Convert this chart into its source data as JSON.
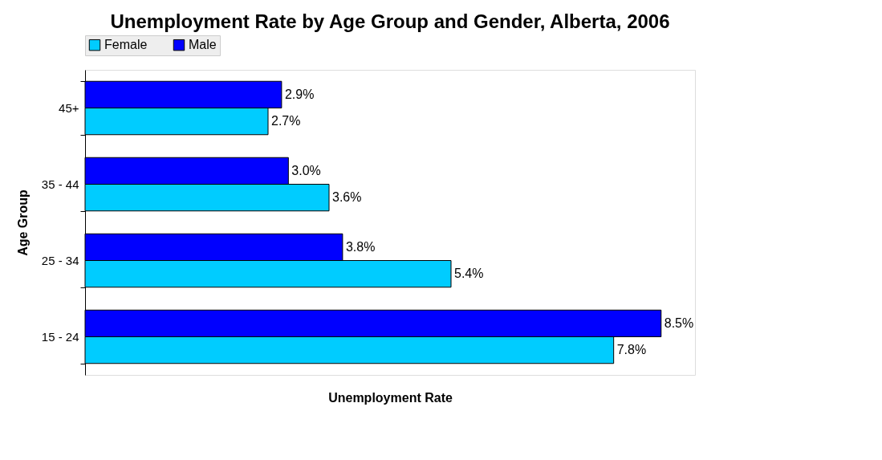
{
  "chart_data": {
    "type": "bar",
    "orientation": "horizontal",
    "title": "Unemployment Rate by Age Group and Gender, Alberta, 2006",
    "xlabel": "Unemployment Rate",
    "ylabel": "Age Group",
    "categories": [
      "45+",
      "35 - 44",
      "25 - 34",
      "15 - 24"
    ],
    "series": [
      {
        "name": "Female",
        "color": "#00ccff",
        "values": [
          2.7,
          3.6,
          5.4,
          7.8
        ],
        "value_labels": [
          "2.7%",
          "3.6%",
          "5.4%",
          "7.8%"
        ]
      },
      {
        "name": "Male",
        "color": "#0000ff",
        "values": [
          2.9,
          3.0,
          3.8,
          8.5
        ],
        "value_labels": [
          "2.9%",
          "3.0%",
          "3.8%",
          "8.5%"
        ]
      }
    ],
    "tick_labels": "y",
    "grid": false,
    "legend": "top"
  }
}
